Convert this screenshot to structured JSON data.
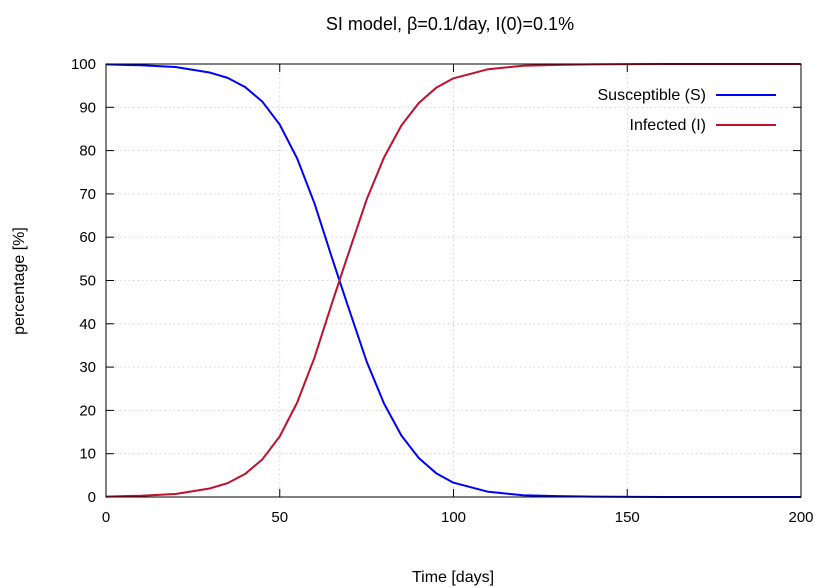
{
  "chart_data": {
    "type": "line",
    "title": "SI model, β=0.1/day, I(0)=0.1%",
    "xlabel": "Time [days]",
    "ylabel": "percentage [%]",
    "xlim": [
      0,
      200
    ],
    "ylim": [
      0,
      100
    ],
    "xticks": [
      0,
      50,
      100,
      150,
      200
    ],
    "yticks": [
      0,
      10,
      20,
      30,
      40,
      50,
      60,
      70,
      80,
      90,
      100
    ],
    "grid": true,
    "legend_position": "top-right",
    "x": [
      0,
      10,
      20,
      30,
      35,
      40,
      45,
      50,
      55,
      60,
      65,
      69,
      75,
      80,
      85,
      90,
      95,
      100,
      110,
      120,
      130,
      140,
      160,
      180,
      200
    ],
    "series": [
      {
        "name": "Susceptible (S)",
        "color": "#0000ff",
        "values": [
          99.9,
          99.7,
          99.3,
          98.0,
          96.8,
          94.7,
          91.3,
          86.0,
          78.2,
          67.8,
          55.3,
          45.6,
          31.3,
          21.6,
          14.2,
          9.0,
          5.5,
          3.3,
          1.2,
          0.4,
          0.2,
          0.1,
          0.0,
          0.0,
          0.0
        ]
      },
      {
        "name": "Infected (I)",
        "color": "#c0102c",
        "values": [
          0.1,
          0.3,
          0.7,
          2.0,
          3.2,
          5.3,
          8.7,
          14.0,
          21.8,
          32.2,
          44.7,
          54.4,
          68.7,
          78.4,
          85.8,
          91.0,
          94.5,
          96.7,
          98.8,
          99.6,
          99.8,
          99.9,
          100.0,
          100.0,
          100.0
        ]
      }
    ]
  }
}
